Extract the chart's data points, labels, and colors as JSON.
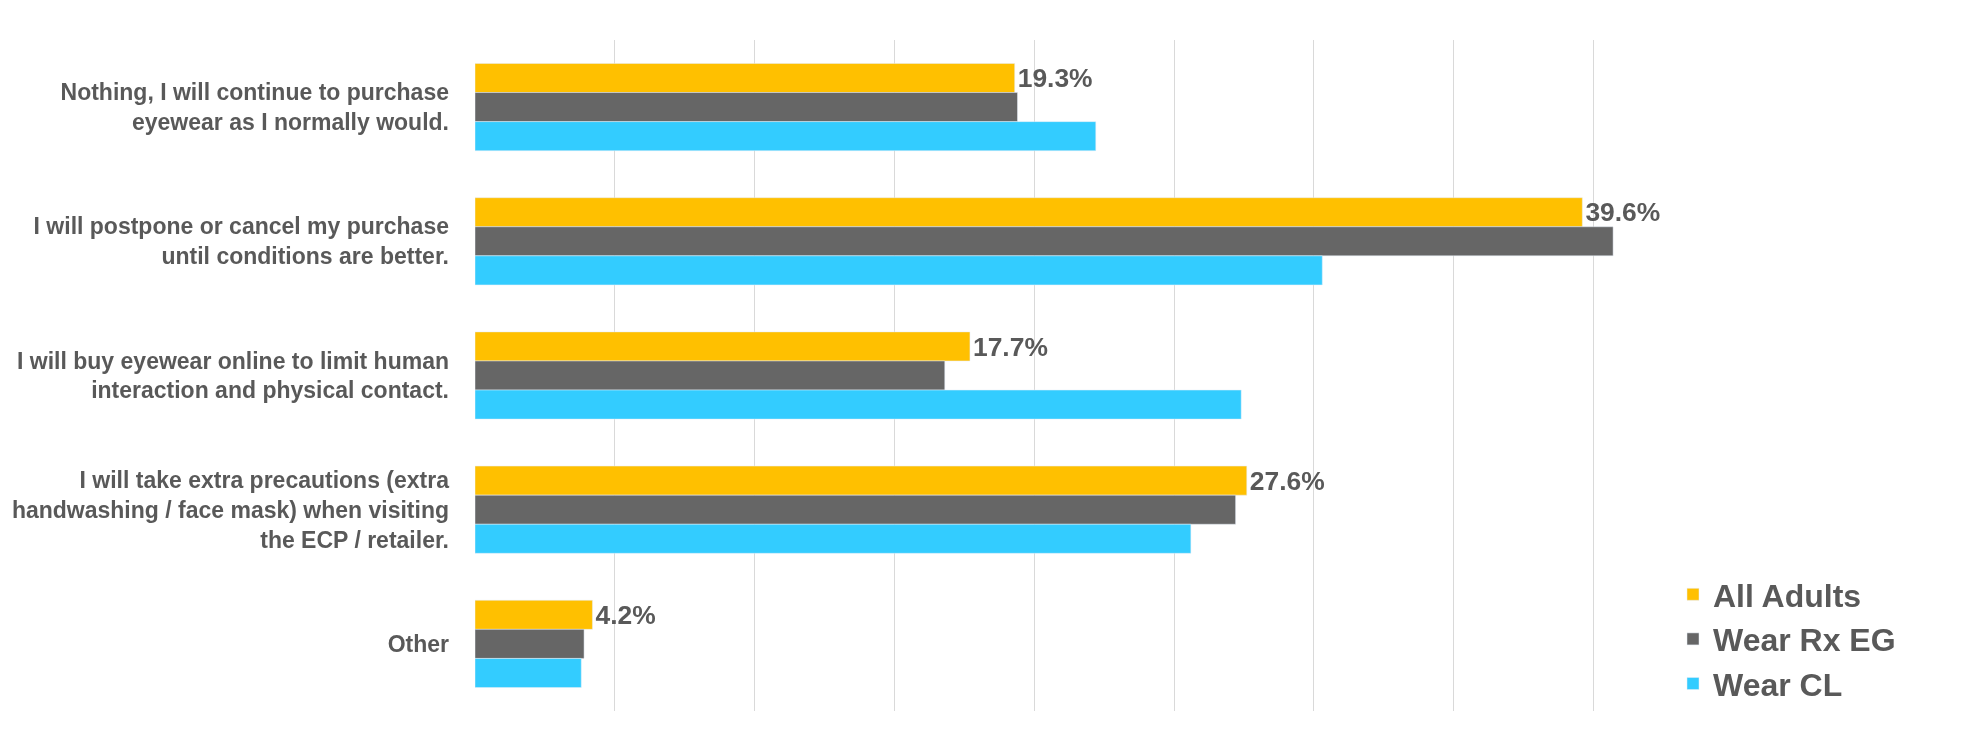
{
  "chart_data": {
    "type": "bar",
    "orientation": "horizontal",
    "categories": [
      "Nothing, I will continue to purchase eyewear as I normally would.",
      "I will postpone or cancel my purchase until conditions are better.",
      "I will buy eyewear online to limit human interaction and physical contact.",
      "I will take extra precautions (extra handwashing / face mask) when visiting the ECP / retailer.",
      "Other"
    ],
    "series": [
      {
        "name": "All Adults",
        "color": "#ffc000",
        "values": [
          19.3,
          39.6,
          17.7,
          27.6,
          4.2
        ],
        "value_labels": [
          "19.3%",
          "39.6%",
          "17.7%",
          "27.6%",
          "4.2%"
        ]
      },
      {
        "name": "Wear Rx EG",
        "color": "#666666",
        "values": [
          19.4,
          40.7,
          16.8,
          27.2,
          3.9
        ]
      },
      {
        "name": "Wear CL",
        "color": "#33ccff",
        "values": [
          22.2,
          30.3,
          27.4,
          25.6,
          3.8
        ]
      }
    ],
    "grid": "x",
    "legend": "bottom right",
    "tick_labels": "y"
  }
}
